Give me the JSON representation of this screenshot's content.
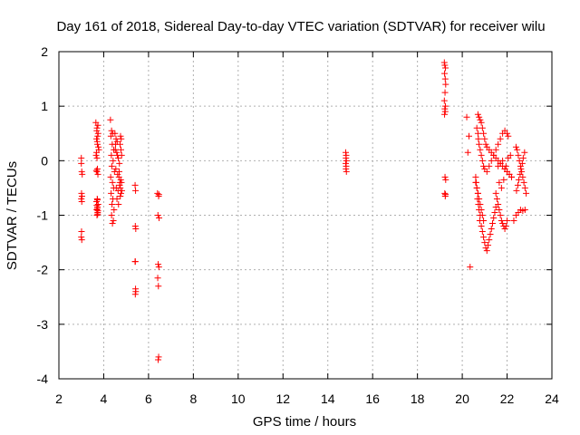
{
  "chart_data": {
    "type": "scatter",
    "title": "Day 161 of 2018, Sidereal Day-to-day VTEC variation (SDTVAR) for receiver wilu",
    "xlabel": "GPS time / hours",
    "ylabel": "SDTVAR / TECUs",
    "xlim": [
      2,
      24
    ],
    "ylim": [
      -4,
      2
    ],
    "xticks": [
      "2",
      "4",
      "6",
      "8",
      "10",
      "12",
      "14",
      "16",
      "18",
      "20",
      "22",
      "24"
    ],
    "yticks": [
      "2",
      "1",
      "0",
      "-1",
      "-2",
      "-3",
      "-4"
    ],
    "grid": true,
    "marker": "+",
    "series": [
      {
        "name": "SDTVAR",
        "color": "#ff0000",
        "x": [
          3.0,
          3.0,
          3.02,
          3.04,
          3.01,
          3.0,
          3.02,
          3.03,
          3.01,
          3.0,
          3.02,
          3.65,
          3.7,
          3.75,
          3.68,
          3.72,
          3.78,
          3.66,
          3.7,
          3.74,
          3.69,
          3.73,
          3.71,
          3.76,
          3.68,
          3.72,
          3.7,
          3.74,
          3.67,
          3.71,
          3.75,
          3.69,
          3.73,
          3.7,
          3.72,
          3.68,
          3.74,
          3.71,
          3.73,
          3.69,
          3.72,
          4.3,
          4.35,
          4.4,
          4.32,
          4.38,
          4.45,
          4.34,
          4.42,
          4.36,
          4.48,
          4.31,
          4.39,
          4.44,
          4.33,
          4.41,
          4.37,
          4.46,
          4.35,
          4.43,
          4.39,
          4.5,
          4.55,
          4.6,
          4.52,
          4.58,
          4.65,
          4.7,
          4.54,
          4.62,
          4.68,
          4.72,
          4.56,
          4.64,
          4.74,
          4.59,
          4.66,
          4.71,
          4.53,
          4.61,
          4.69,
          4.75,
          4.78,
          4.73,
          4.77,
          4.8,
          4.76,
          4.79,
          4.74,
          4.81,
          4.77,
          5.4,
          5.42,
          5.41,
          5.43,
          5.4,
          5.42,
          5.41,
          5.43,
          5.41,
          6.4,
          6.45,
          6.42,
          6.47,
          6.43,
          6.46,
          6.41,
          6.44,
          6.45,
          6.43,
          6.46,
          14.8,
          14.82,
          14.81,
          14.83,
          14.8,
          14.82,
          14.81,
          14.83,
          19.2,
          19.22,
          19.25,
          19.21,
          19.24,
          19.26,
          19.23,
          19.2,
          19.25,
          19.22,
          19.24,
          19.21,
          19.23,
          19.26,
          19.22,
          19.24,
          19.25,
          20.2,
          20.3,
          20.25,
          20.35,
          20.6,
          20.62,
          20.65,
          20.7,
          20.68,
          20.72,
          20.75,
          20.8,
          20.78,
          20.85,
          20.9,
          20.95,
          21.0,
          21.05,
          21.1,
          21.15,
          21.2,
          21.25,
          21.3,
          21.35,
          21.4,
          21.45,
          21.5,
          20.7,
          20.75,
          20.8,
          20.85,
          20.9,
          20.95,
          21.0,
          21.05,
          21.1,
          21.2,
          21.3,
          21.4,
          21.5,
          21.6,
          21.7,
          21.8,
          21.9,
          22.0,
          22.1,
          22.2,
          20.65,
          20.7,
          20.72,
          20.75,
          20.8,
          20.85,
          20.9,
          20.95,
          21.0,
          21.1,
          21.2,
          21.3,
          21.4,
          21.5,
          21.6,
          21.7,
          21.8,
          21.9,
          22.0,
          22.05,
          20.6,
          20.65,
          20.7,
          20.75,
          20.8,
          20.85,
          20.9,
          20.95,
          21.5,
          21.55,
          21.6,
          21.65,
          21.7,
          21.75,
          21.8,
          21.85,
          21.9,
          21.95,
          22.0,
          22.4,
          22.45,
          22.5,
          22.55,
          22.6,
          22.65,
          22.7,
          22.75,
          22.8,
          22.85,
          22.42,
          22.48,
          22.52,
          22.58,
          22.62,
          22.68,
          22.72,
          22.78,
          22.3,
          22.4,
          22.5,
          22.6,
          22.7,
          22.8,
          21.6,
          21.7,
          21.8,
          21.9,
          22.0,
          22.1,
          22.2,
          21.65,
          21.75,
          21.85,
          21.95,
          22.05,
          22.15
        ],
        "y": [
          0.05,
          -0.05,
          -0.2,
          -0.25,
          -0.6,
          -0.7,
          -0.75,
          -0.65,
          -1.3,
          -1.4,
          -1.45,
          0.7,
          0.6,
          0.5,
          0.4,
          0.3,
          0.2,
          0.1,
          0.05,
          0.65,
          0.55,
          0.45,
          0.35,
          0.25,
          0.15,
          -0.15,
          -0.2,
          -0.25,
          -0.18,
          -0.7,
          -0.8,
          -0.9,
          -0.95,
          -1.0,
          -0.85,
          -0.75,
          -0.92,
          -0.88,
          -0.98,
          -0.82,
          -0.72,
          0.75,
          0.55,
          0.5,
          0.45,
          0.3,
          0.2,
          0.1,
          0.0,
          -0.1,
          -0.2,
          -0.3,
          -0.4,
          -0.5,
          -0.6,
          -0.7,
          -0.8,
          -0.9,
          -1.0,
          -1.1,
          -1.15,
          0.5,
          0.4,
          0.35,
          0.2,
          0.15,
          0.05,
          -0.05,
          -0.15,
          -0.25,
          -0.3,
          -0.4,
          -0.5,
          -0.55,
          -0.65,
          -0.7,
          -0.8,
          -0.45,
          0.3,
          0.1,
          -0.2,
          0.45,
          0.4,
          0.3,
          0.2,
          0.1,
          -0.35,
          -0.4,
          -0.5,
          -0.55,
          -0.6,
          -0.45,
          -0.55,
          -1.2,
          -1.25,
          -1.85,
          -2.35,
          -2.45,
          -2.4,
          -1.85,
          -0.6,
          -0.65,
          -1.0,
          -1.05,
          -1.9,
          -1.95,
          -2.15,
          -2.3,
          -3.6,
          -3.65,
          -0.62,
          0.15,
          0.1,
          0.05,
          0.0,
          -0.05,
          -0.1,
          -0.15,
          -0.2,
          1.8,
          1.75,
          1.7,
          1.6,
          1.5,
          1.4,
          1.25,
          1.1,
          1.0,
          0.95,
          0.9,
          0.85,
          -0.3,
          -0.35,
          -0.6,
          -0.65,
          -0.62,
          0.8,
          0.45,
          0.15,
          -1.95,
          -0.3,
          -0.4,
          -0.5,
          -0.6,
          -0.7,
          -0.8,
          -0.9,
          -1.0,
          -1.1,
          -1.2,
          -1.3,
          -1.4,
          -1.5,
          -1.6,
          -1.65,
          -1.55,
          -1.45,
          -1.35,
          -1.25,
          -1.15,
          -1.05,
          -0.95,
          -0.85,
          0.85,
          0.8,
          0.75,
          0.7,
          0.6,
          0.5,
          0.4,
          0.3,
          0.25,
          0.2,
          0.15,
          0.1,
          0.05,
          0.0,
          -0.05,
          -0.1,
          -0.15,
          -0.2,
          -0.25,
          -0.3,
          0.6,
          0.5,
          0.4,
          0.3,
          0.2,
          0.1,
          0.0,
          -0.1,
          -0.15,
          -0.2,
          -0.1,
          0.0,
          0.1,
          0.2,
          0.3,
          0.4,
          0.5,
          0.55,
          0.5,
          0.45,
          -0.4,
          -0.5,
          -0.6,
          -0.7,
          -0.8,
          -0.9,
          -1.0,
          -1.1,
          -0.6,
          -0.7,
          -0.8,
          -0.9,
          -1.0,
          -1.1,
          -1.15,
          -1.2,
          -1.25,
          -1.2,
          -1.1,
          0.25,
          0.2,
          0.1,
          0.0,
          -0.1,
          -0.2,
          -0.3,
          -0.4,
          -0.5,
          -0.6,
          -0.55,
          -0.45,
          -0.35,
          -0.25,
          -0.15,
          -0.05,
          0.05,
          0.15,
          -1.1,
          -1.0,
          -0.95,
          -0.9,
          -0.92,
          -0.9,
          -0.1,
          -0.05,
          0.0,
          -0.15,
          -0.2,
          -0.25,
          -0.3,
          -0.4,
          -0.5,
          -0.35,
          -0.1,
          0.05,
          0.1
        ]
      }
    ]
  }
}
